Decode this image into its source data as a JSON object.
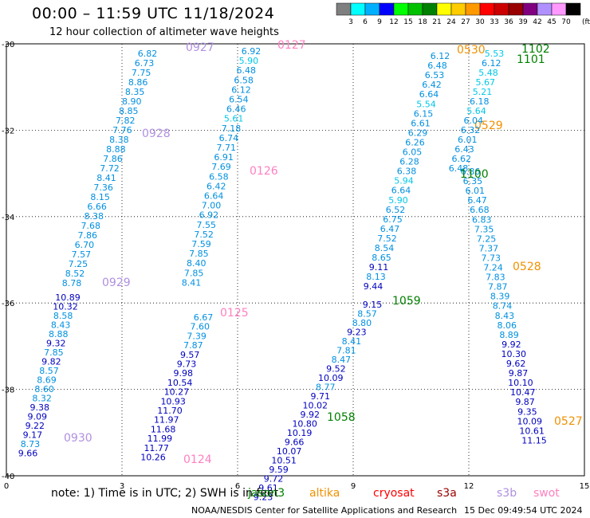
{
  "header": {
    "title": "00:00 – 11:59 UTC 11/18/2024",
    "subtitle": "12 hour collection of altimeter wave heights"
  },
  "colorbar": {
    "unit": "(ft)",
    "entries": [
      {
        "label": "3",
        "color": "#7f7f7f"
      },
      {
        "label": "6",
        "color": "#00ffff"
      },
      {
        "label": "9",
        "color": "#00b0ff"
      },
      {
        "label": "12",
        "color": "#0000ff"
      },
      {
        "label": "15",
        "color": "#00ff00"
      },
      {
        "label": "18",
        "color": "#00c000"
      },
      {
        "label": "21",
        "color": "#008000"
      },
      {
        "label": "24",
        "color": "#ffff00"
      },
      {
        "label": "27",
        "color": "#ffcc00"
      },
      {
        "label": "30",
        "color": "#ff9900"
      },
      {
        "label": "33",
        "color": "#ff0000"
      },
      {
        "label": "36",
        "color": "#cc0000"
      },
      {
        "label": "39",
        "color": "#990000"
      },
      {
        "label": "42",
        "color": "#800080"
      },
      {
        "label": "45",
        "color": "#b090ff"
      },
      {
        "label": "70",
        "color": "#ff99ff"
      },
      {
        "label": "",
        "color": "#000000"
      }
    ]
  },
  "map": {
    "x_ticks": [
      "0",
      "3",
      "6",
      "9",
      "12",
      "15"
    ],
    "y_ticks": [
      "-30",
      "-32",
      "-34",
      "-36",
      "-38",
      "-40"
    ],
    "x_range": [
      0,
      15
    ],
    "y_range": [
      -40,
      -30
    ],
    "grid": "dotted",
    "tracks": [
      {
        "label": "0927",
        "color": "#b090e0",
        "lon_start": 3.8,
        "lon_end": 1.0,
        "values": [
          "6.82",
          "6.73",
          "7.75",
          "8.86",
          "8.35",
          "8.90",
          "8.85",
          "7.82",
          "7.76",
          "8.38",
          "8.88",
          "7.86",
          "7.72",
          "8.41",
          "7.36",
          "8.15",
          "6.66",
          "8.38",
          "7.68",
          "7.86",
          "6.70",
          "7.57",
          "7.25",
          "8.52",
          "8.78"
        ]
      },
      {
        "label": "0928",
        "color": "#b090e0",
        "lon_start": 3.2,
        "lon_end": 3.2,
        "values": []
      },
      {
        "label": "0929",
        "color": "#b090e0",
        "lon_start": 2.2,
        "lon_end": 2.2,
        "values": []
      },
      {
        "label": "0930",
        "color": "#b090e0",
        "lon_start": 2.1,
        "lon_end": 0.6,
        "values": [
          "10.89",
          "10.32",
          "8.58",
          "8.43",
          "8.88",
          "9.32",
          "7.85",
          "9.82",
          "8.57",
          "8.69",
          "8.60",
          "8.32",
          "9.38",
          "9.09",
          "9.22",
          "9.17",
          "8.73",
          "9.66"
        ]
      },
      {
        "label": "0127",
        "color": "#ff80c0",
        "lon_start": 6.6,
        "lon_end": 5.1,
        "values": [
          "6.92",
          "5.90",
          "6.48",
          "6.58",
          "6.12",
          "6.54",
          "6.46",
          "5.61",
          "7.18",
          "6.74",
          "7.71",
          "6.91",
          "7.69",
          "6.58",
          "6.42",
          "6.64",
          "7.00",
          "6.92",
          "7.55",
          "7.52",
          "7.59",
          "7.85",
          "8.40",
          "7.85",
          "8.41"
        ]
      },
      {
        "label": "0126",
        "color": "#ff80c0",
        "lon_start": 6.4,
        "lon_end": 6.4,
        "values": []
      },
      {
        "label": "0125",
        "color": "#ff80c0",
        "lon_start": 5.3,
        "lon_end": 5.3,
        "values": []
      },
      {
        "label": "0124",
        "color": "#ff80c0",
        "lon_start": 4.6,
        "lon_end": 3.9,
        "values": [
          "6.67",
          "7.60",
          "7.39",
          "7.87",
          "9.57",
          "9.73",
          "9.98",
          "10.54",
          "10.27",
          "10.93",
          "11.70",
          "11.97",
          "11.68",
          "11.99",
          "11.77",
          "10.26"
        ]
      },
      {
        "label": "0530",
        "color": "#f09000",
        "lon_start": 11.2,
        "lon_end": 9.4,
        "values": [
          "6.12",
          "6.48",
          "6.53",
          "6.42",
          "6.64",
          "5.54",
          "6.15",
          "6.61",
          "6.29",
          "6.26",
          "6.05",
          "6.28",
          "6.38",
          "5.94",
          "6.64",
          "5.90",
          "6.52",
          "6.75",
          "6.47",
          "7.52",
          "8.54",
          "8.65",
          "9.11",
          "8.13",
          "9.44"
        ]
      },
      {
        "label": "0529",
        "color": "#f09000",
        "lon_start": 12.0,
        "lon_end": 12.0,
        "values": []
      },
      {
        "label": "0528",
        "color": "#f09000",
        "lon_start": 13.2,
        "lon_end": 13.2,
        "values": []
      },
      {
        "label": "0527",
        "color": "#f09000",
        "lon_start": 13.6,
        "lon_end": 12.6,
        "values": [
          "6.86",
          "6.35",
          "6.01",
          "6.47",
          "6.68",
          "6.83",
          "7.35",
          "7.25",
          "7.37",
          "7.73",
          "7.24",
          "7.83",
          "7.87",
          "8.39",
          "8.74",
          "8.43",
          "8.06",
          "8.89",
          "9.92",
          "10.30",
          "9.62",
          "9.87",
          "10.10",
          "10.47",
          "9.87",
          "9.35",
          "10.09",
          "10.61",
          "11.15"
        ]
      },
      {
        "label": "1102",
        "color": "#008000",
        "lon_start": 12.0,
        "lon_end": 11.2,
        "values": [
          "5.53",
          "6.12",
          "5.48",
          "5.67",
          "5.21",
          "6.18",
          "5.64",
          "6.04",
          "6.32",
          "6.01",
          "6.43",
          "6.62",
          "6.48"
        ]
      },
      {
        "label": "1101",
        "color": "#008000",
        "lon_start": 13.3,
        "lon_end": 13.3,
        "values": []
      },
      {
        "label": "1100",
        "color": "#008000",
        "lon_start": 11.8,
        "lon_end": 11.8,
        "values": []
      },
      {
        "label": "1059",
        "color": "#008000",
        "lon_start": 9.1,
        "lon_end": 8.0,
        "values": [
          "9.15",
          "8.57",
          "8.80",
          "9.23",
          "8.41",
          "7.81",
          "8.47",
          "9.52",
          "10.09",
          "8.77",
          "9.71",
          "10.02",
          "9.92",
          "10.80",
          "10.19",
          "9.66",
          "10.07",
          "10.51",
          "9.59",
          "9.72",
          "9.61",
          "9.23"
        ]
      },
      {
        "label": "1058",
        "color": "#008000",
        "lon_start": 8.3,
        "lon_end": 8.3,
        "values": []
      }
    ]
  },
  "footer": {
    "note": "note:  1) Time is in UTC;  2) SWH is in feet",
    "satellites": [
      {
        "name": "jason3",
        "color": "#008000"
      },
      {
        "name": "altika",
        "color": "#f09000"
      },
      {
        "name": "cryosat",
        "color": "#ff0000"
      },
      {
        "name": "s3a",
        "color": "#990000"
      },
      {
        "name": "s3b",
        "color": "#b090e0"
      },
      {
        "name": "swot",
        "color": "#ff80c0"
      }
    ],
    "credit": "NOAA/NESDIS Center for Satellite Applications and Research",
    "timestamp": "15 Dec 09:49:54 UTC 2024"
  }
}
